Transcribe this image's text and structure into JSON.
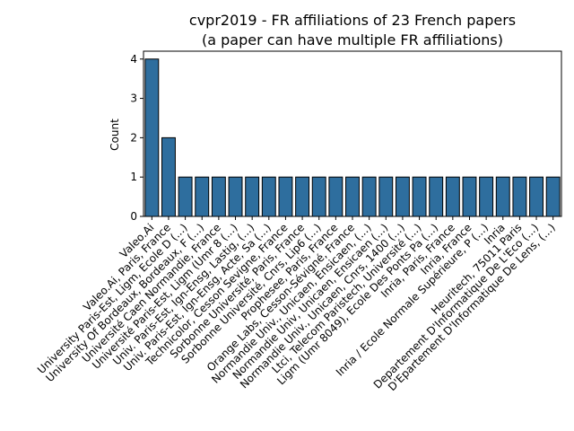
{
  "chart_data": {
    "type": "bar",
    "title": "cvpr2019 - FR affiliations of 23 French papers",
    "subtitle": "(a paper can have multiple FR affiliations)",
    "xlabel": "",
    "ylabel": "Count",
    "ylim": [
      0,
      4.2
    ],
    "yticks": [
      0,
      1,
      2,
      3,
      4
    ],
    "grid": false,
    "bar_color": "#2e6e9e",
    "categories": [
      "Valeo.Ai",
      "Valeo.Ai, Paris, France",
      "University Paris-Est, Ligm, Ecole D (...)",
      "University Of Bordeaux, Bordeaux, F (...)",
      "Université Caen Normandie, France",
      "Université Paris-Est, Ligm (Umr 8 (...)",
      "Univ. Paris-Est, Ign-Ensg, Lastig, (...)",
      "Univ. Paris-Est, Ign-Ensg, Acte, Sa (...)",
      "Technicolor, Cesson Sevigne, France",
      "Sorbonne Université, Paris, France",
      "Sorbonne Université, Cnrs, Lip6 (...)",
      "Prophesee, Paris, France",
      "Orange Labs, Cesson-Sévigné, France",
      "Normandie Univ., Unicaen, Ensicaen, (...)",
      "Normandie Univ, Unicaen, Ensicaen (...)",
      "Normandie Univ., Unicaen, Cnrs, 1400 (...)",
      "Ltci, Telecom Paristech, Université (...)",
      "Ligm (Umr 8049), Ecole Des Ponts Pa (...)",
      "Inria, Paris, France",
      "Inria, France",
      "Inria / Ecole Normale Supérieure, P (...)",
      "Inria",
      "Heuritech, 75011 Paris",
      "Departement D'Informatique De L'Eco (...)",
      "D'Epartement D'Informatique De Lens, (...)"
    ],
    "values": [
      4,
      2,
      1,
      1,
      1,
      1,
      1,
      1,
      1,
      1,
      1,
      1,
      1,
      1,
      1,
      1,
      1,
      1,
      1,
      1,
      1,
      1,
      1,
      1,
      1
    ]
  }
}
